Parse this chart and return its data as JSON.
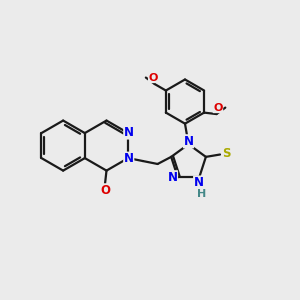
{
  "background_color": "#ebebeb",
  "bond_color": "#1a1a1a",
  "bond_lw": 1.6,
  "atom_colors": {
    "N": "#0000ee",
    "O": "#dd0000",
    "S": "#aaaa00",
    "H": "#448888",
    "C": "#1a1a1a"
  },
  "figsize": [
    3.0,
    3.0
  ],
  "dpi": 100,
  "xlim": [
    0,
    10
  ],
  "ylim": [
    0,
    10
  ]
}
